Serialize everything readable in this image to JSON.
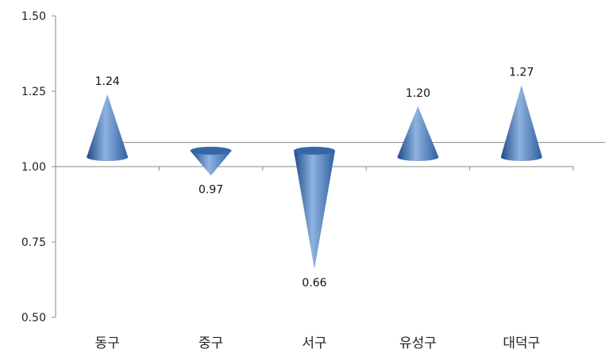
{
  "chart_data": {
    "type": "bar",
    "mark_shape": "cone",
    "categories": [
      "동구",
      "중구",
      "서구",
      "유성구",
      "대덕구"
    ],
    "values": [
      1.24,
      0.97,
      0.66,
      1.2,
      1.27
    ],
    "data_labels": [
      "1.24",
      "0.97",
      "0.66",
      "1.20",
      "1.27"
    ],
    "baseline": 1.0,
    "reference_line": 1.08,
    "ylim": [
      0.5,
      1.5
    ],
    "yticks": [
      "0.50",
      "0.75",
      "1.00",
      "1.25",
      "1.50"
    ],
    "title": "",
    "xlabel": "",
    "ylabel": "",
    "grid": false,
    "colors": {
      "cone_light": "#8fb3e0",
      "cone_mid": "#4a7bbf",
      "cone_dark": "#1f4a8a",
      "axis": "#888888",
      "reference_line": "#888888"
    }
  }
}
